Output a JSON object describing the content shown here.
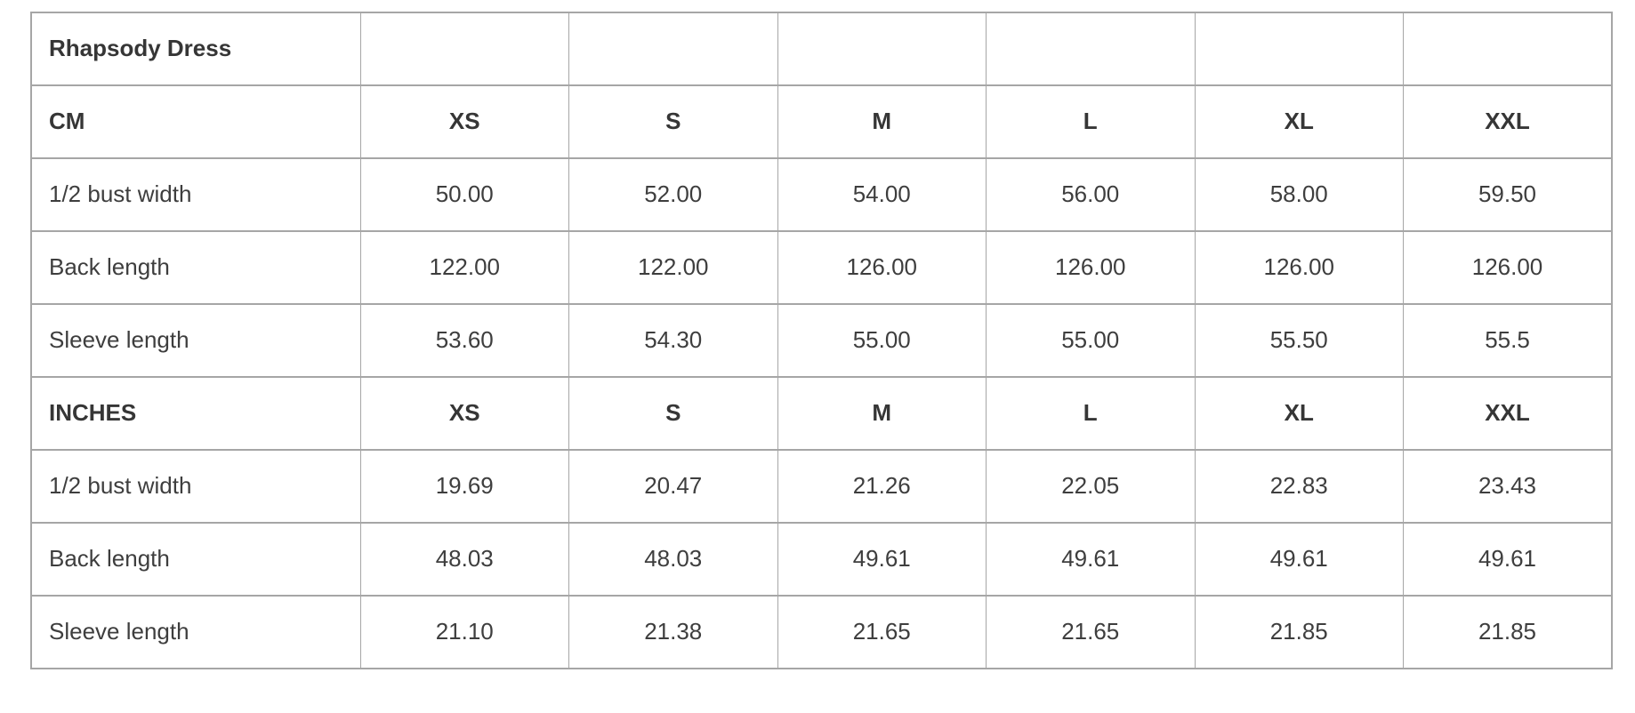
{
  "table": {
    "title": "Rhapsody Dress",
    "sizes": [
      "XS",
      "S",
      "M",
      "L",
      "XL",
      "XXL"
    ],
    "sections": [
      {
        "unit": "CM",
        "rows": [
          {
            "label": "1/2 bust width",
            "values": [
              "50.00",
              "52.00",
              "54.00",
              "56.00",
              "58.00",
              "59.50"
            ]
          },
          {
            "label": "Back length",
            "values": [
              "122.00",
              "122.00",
              "126.00",
              "126.00",
              "126.00",
              "126.00"
            ]
          },
          {
            "label": "Sleeve length",
            "values": [
              "53.60",
              "54.30",
              "55.00",
              "55.00",
              "55.50",
              "55.5"
            ]
          }
        ]
      },
      {
        "unit": "INCHES",
        "rows": [
          {
            "label": "1/2 bust width",
            "values": [
              "19.69",
              "20.47",
              "21.26",
              "22.05",
              "22.83",
              "23.43"
            ]
          },
          {
            "label": "Back length",
            "values": [
              "48.03",
              "48.03",
              "49.61",
              "49.61",
              "49.61",
              "49.61"
            ]
          },
          {
            "label": "Sleeve length",
            "values": [
              "21.10",
              "21.38",
              "21.65",
              "21.65",
              "21.85",
              "21.85"
            ]
          }
        ]
      }
    ],
    "colors": {
      "border": "#a6a6a6",
      "text": "#3e3e3e",
      "heading": "#363636",
      "background": "#ffffff"
    }
  }
}
